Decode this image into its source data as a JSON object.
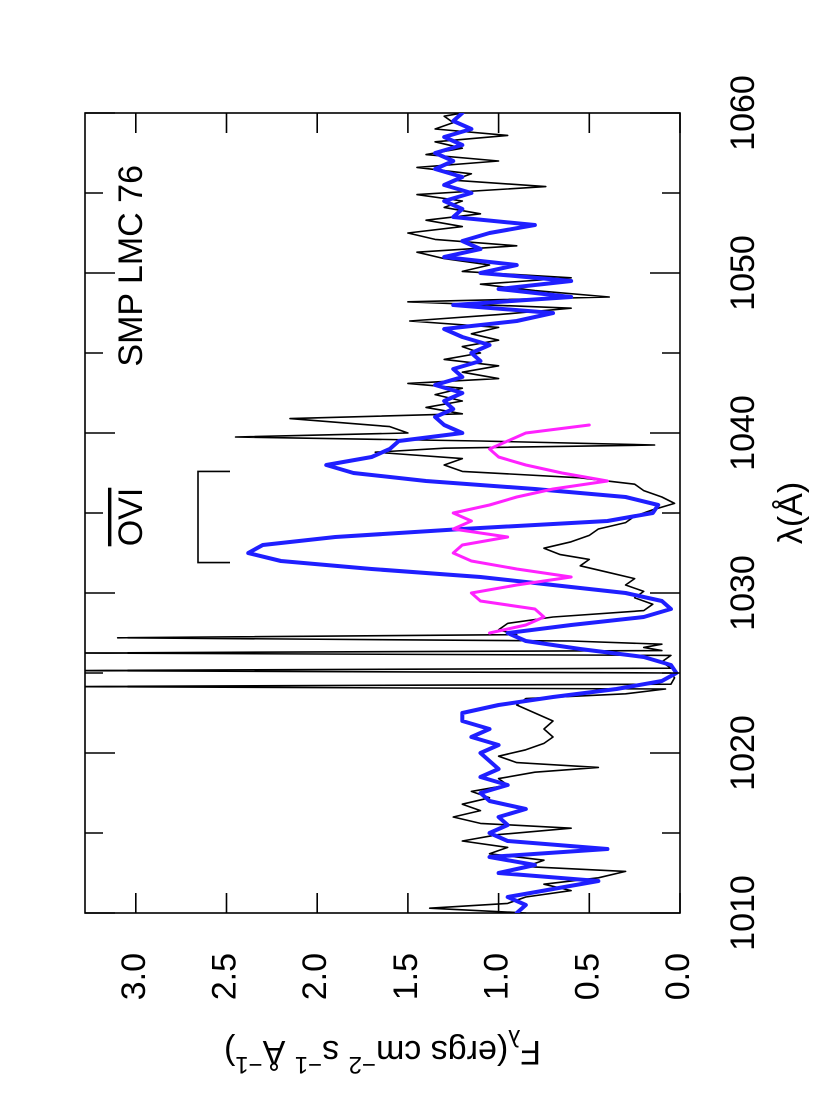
{
  "chart_data": {
    "type": "line",
    "x_label": "λ(Å)",
    "y_label": [
      {
        "text": "F"
      },
      {
        "text": "λ",
        "shift": "sub"
      },
      {
        "text": "(ergs cm"
      },
      {
        "text": "−2",
        "shift": "super"
      },
      {
        "text": " s"
      },
      {
        "text": "−1",
        "shift": "super"
      },
      {
        "text": " Å"
      },
      {
        "text": "−1",
        "shift": "super"
      },
      {
        "text": ")"
      }
    ],
    "annotations": [
      {
        "text": "SMP LMC 76"
      },
      {
        "text": "OVI",
        "x": [
          1031.9,
          1037.6
        ]
      }
    ],
    "xlim": [
      1010,
      1060
    ],
    "ylim": [
      0,
      3.28
    ],
    "xticks": [
      1010,
      1020,
      1030,
      1040,
      1050,
      1060
    ],
    "xticks_minor": [
      1015,
      1025,
      1035,
      1045,
      1055
    ],
    "yticks": [
      {
        "value": 0,
        "label": "0.0"
      },
      0.5,
      {
        "value": 1,
        "label": "1.0"
      },
      1.5,
      {
        "value": 2,
        "label": "2.0"
      },
      2.5,
      {
        "value": 3,
        "label": "3.0"
      }
    ],
    "grid": false,
    "rotation": -90,
    "series": [
      {
        "color": "#000000",
        "width": 1.6,
        "x": [
          1010.0,
          1010.3,
          1010.6,
          1011.0,
          1011.4,
          1011.8,
          1012.2,
          1012.6,
          1012.9,
          1013.3,
          1013.7,
          1014.1,
          1014.5,
          1014.9,
          1015.3,
          1015.6,
          1016.0,
          1016.4,
          1016.8,
          1017.2,
          1017.6,
          1018.0,
          1018.4,
          1018.8,
          1019.1,
          1019.4,
          1019.8,
          1020.2,
          1020.6,
          1021.0,
          1021.5,
          1022.0,
          1022.5,
          1023.0,
          1023.4,
          1023.7,
          1024.0,
          1024.15,
          1024.3,
          1024.7,
          1025.0,
          1025.15,
          1025.3,
          1025.7,
          1026.1,
          1026.25,
          1026.4,
          1026.6,
          1026.8,
          1027.0,
          1027.2,
          1027.4,
          1027.7,
          1028.1,
          1028.5,
          1028.9,
          1029.3,
          1029.7,
          1030.1,
          1030.5,
          1030.9,
          1031.3,
          1031.7,
          1032.1,
          1032.4,
          1032.8,
          1033.2,
          1033.6,
          1034.0,
          1034.4,
          1034.8,
          1035.2,
          1035.6,
          1036.0,
          1036.4,
          1036.8,
          1037.2,
          1037.6,
          1038.0,
          1038.4,
          1038.8,
          1039.05,
          1039.25,
          1039.5,
          1039.75,
          1040.0,
          1040.4,
          1040.9,
          1041.2,
          1041.6,
          1042.0,
          1042.4,
          1042.8,
          1043.1,
          1043.4,
          1043.8,
          1044.2,
          1044.6,
          1045.0,
          1045.4,
          1045.8,
          1046.2,
          1046.6,
          1047.0,
          1047.4,
          1047.8,
          1048.2,
          1048.5,
          1048.9,
          1049.3,
          1049.7,
          1050.1,
          1050.5,
          1050.9,
          1051.3,
          1051.7,
          1052.1,
          1052.5,
          1052.9,
          1053.3,
          1053.7,
          1054.1,
          1054.5,
          1054.9,
          1055.4,
          1055.8,
          1056.2,
          1056.6,
          1057.0,
          1057.4,
          1057.8,
          1058.2,
          1058.6,
          1059.0,
          1059.4,
          1059.8,
          1060.0
        ],
        "values": [
          0.85,
          1.38,
          0.95,
          0.85,
          0.6,
          0.75,
          0.45,
          0.3,
          0.85,
          0.75,
          1.05,
          0.95,
          1.2,
          1.0,
          0.6,
          1.1,
          1.25,
          1.1,
          1.2,
          1.05,
          1.15,
          0.95,
          1.0,
          0.8,
          0.45,
          0.9,
          1.0,
          0.85,
          0.75,
          0.7,
          0.75,
          0.7,
          0.8,
          0.9,
          0.85,
          0.3,
          0.08,
          3.4,
          0.05,
          0.03,
          0.05,
          3.4,
          0.05,
          0.1,
          0.05,
          3.4,
          0.1,
          0.2,
          0.1,
          0.6,
          3.1,
          0.9,
          1.0,
          0.95,
          0.7,
          0.2,
          0.15,
          0.25,
          0.2,
          0.3,
          0.25,
          0.4,
          0.55,
          0.5,
          0.66,
          0.75,
          0.6,
          0.5,
          0.45,
          0.3,
          0.25,
          0.15,
          0.03,
          0.1,
          0.2,
          0.25,
          0.55,
          1.2,
          1.3,
          1.2,
          1.68,
          1.3,
          0.14,
          1.1,
          2.45,
          1.5,
          1.6,
          2.15,
          1.2,
          1.4,
          1.2,
          1.35,
          1.2,
          1.5,
          1.0,
          1.2,
          1.0,
          1.3,
          1.1,
          1.2,
          1.0,
          1.15,
          1.0,
          1.49,
          1.0,
          0.6,
          1.5,
          0.39,
          0.8,
          1.1,
          0.6,
          1.2,
          1.05,
          1.3,
          1.45,
          0.9,
          1.35,
          1.5,
          1.2,
          1.4,
          1.1,
          1.3,
          1.2,
          1.45,
          0.74,
          1.25,
          1.15,
          1.45,
          1.0,
          1.4,
          1.2,
          1.35,
          0.95,
          1.35,
          1.25,
          1.3,
          1.2
        ]
      },
      {
        "color": "#1f1fff",
        "width": 4,
        "x": [
          1010.0,
          1010.5,
          1011.0,
          1011.5,
          1012.0,
          1012.5,
          1013.0,
          1013.5,
          1014.0,
          1014.5,
          1015.0,
          1015.5,
          1016.0,
          1016.5,
          1017.0,
          1017.5,
          1018.0,
          1018.5,
          1019.0,
          1019.5,
          1020.0,
          1020.5,
          1021.0,
          1021.5,
          1022.0,
          1022.5,
          1023.0,
          1023.5,
          1024.0,
          1024.5,
          1025.0,
          1025.5,
          1026.0,
          1026.5,
          1027.0,
          1027.5,
          1028.0,
          1028.5,
          1029.0,
          1029.5,
          1030.0,
          1030.5,
          1031.0,
          1031.5,
          1032.0,
          1032.5,
          1033.0,
          1033.5,
          1034.0,
          1034.5,
          1035.0,
          1035.5,
          1036.0,
          1036.5,
          1037.0,
          1037.5,
          1038.0,
          1038.5,
          1039.0,
          1039.5,
          1040.0,
          1040.5,
          1041.0,
          1041.5,
          1042.0,
          1042.5,
          1043.0,
          1043.5,
          1044.0,
          1044.5,
          1045.0,
          1045.5,
          1046.0,
          1046.5,
          1047.0,
          1047.5,
          1048.0,
          1048.5,
          1049.0,
          1049.5,
          1050.0,
          1050.5,
          1051.0,
          1051.5,
          1052.0,
          1052.5,
          1053.0,
          1053.5,
          1054.0,
          1054.5,
          1055.0,
          1055.5,
          1056.0,
          1056.5,
          1057.0,
          1057.5,
          1058.0,
          1058.5,
          1059.0,
          1059.5,
          1060.0
        ],
        "values": [
          0.9,
          0.85,
          0.95,
          0.7,
          0.45,
          1.0,
          0.8,
          1.05,
          0.4,
          0.95,
          1.05,
          0.95,
          1.0,
          0.85,
          1.05,
          1.1,
          0.95,
          1.1,
          1.0,
          1.05,
          1.1,
          1.0,
          1.15,
          1.05,
          1.2,
          1.2,
          1.0,
          0.7,
          0.35,
          0.1,
          0.02,
          0.05,
          0.2,
          0.55,
          0.85,
          0.95,
          0.6,
          0.2,
          0.05,
          0.1,
          0.3,
          0.7,
          1.1,
          1.7,
          2.2,
          2.38,
          2.3,
          1.9,
          1.2,
          0.4,
          0.15,
          0.12,
          0.3,
          0.8,
          1.4,
          1.8,
          1.95,
          1.7,
          1.6,
          1.55,
          1.2,
          1.3,
          1.35,
          1.25,
          1.3,
          1.2,
          1.35,
          1.2,
          1.25,
          1.1,
          1.15,
          1.05,
          1.2,
          1.3,
          0.9,
          0.7,
          1.25,
          0.6,
          1.0,
          0.6,
          1.1,
          0.9,
          1.3,
          1.1,
          1.2,
          1.05,
          0.8,
          1.25,
          1.2,
          1.3,
          1.15,
          1.3,
          1.2,
          1.35,
          1.25,
          1.35,
          1.2,
          1.3,
          1.15,
          1.25,
          1.2
        ]
      },
      {
        "color": "#ff22ff",
        "width": 3,
        "x": [
          1027.5,
          1028.0,
          1028.5,
          1029.0,
          1029.5,
          1030.0,
          1030.5,
          1031.0,
          1031.5,
          1032.0,
          1032.5,
          1033.0,
          1033.5,
          1034.0,
          1034.5,
          1035.0,
          1035.5,
          1036.0,
          1036.5,
          1037.0,
          1037.5,
          1038.0,
          1038.5,
          1039.0,
          1039.5,
          1040.0,
          1040.5
        ],
        "values": [
          1.05,
          0.85,
          0.75,
          0.8,
          1.1,
          1.15,
          0.9,
          0.6,
          0.9,
          1.15,
          1.25,
          1.2,
          0.95,
          1.25,
          1.15,
          1.25,
          1.05,
          0.9,
          0.7,
          0.4,
          0.65,
          0.85,
          1.0,
          1.05,
          0.95,
          0.85,
          0.5
        ]
      }
    ]
  }
}
